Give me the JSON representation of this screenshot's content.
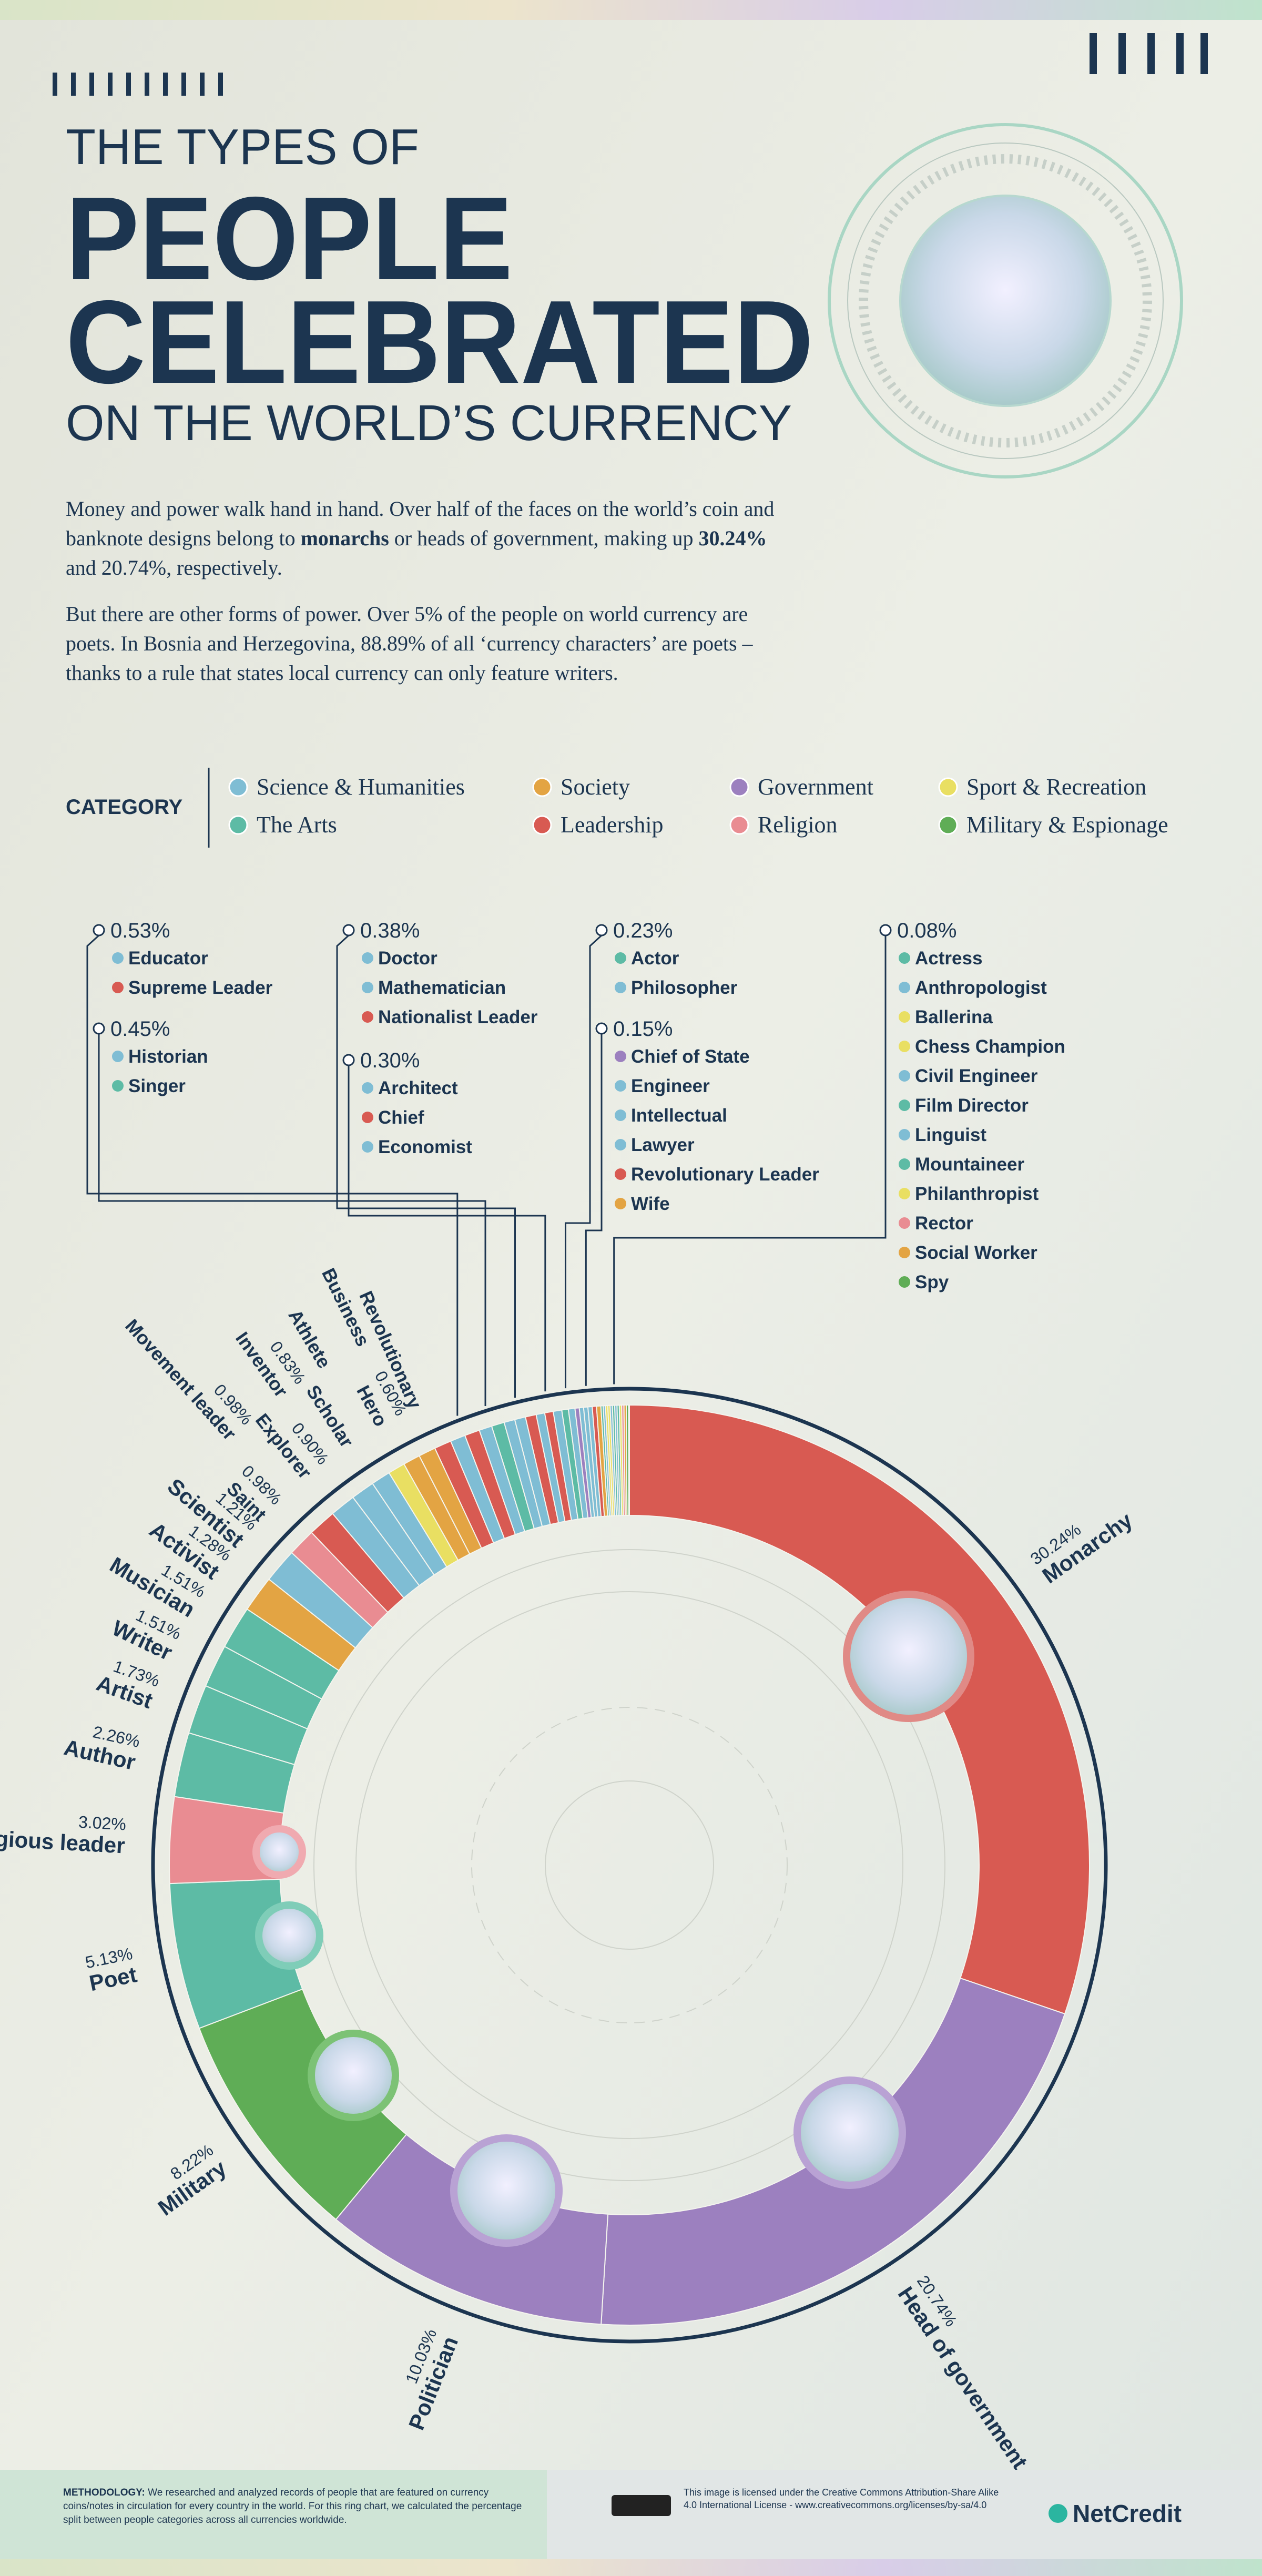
{
  "header": {
    "kicker": "THE TYPES OF",
    "title_lines": [
      "PEOPLE",
      "CELEBRATED"
    ],
    "subtitle": "ON THE WORLD’S CURRENCY"
  },
  "intro": {
    "paragraph_1": [
      "Money and power walk hand in hand. Over half of the faces on the world’s coin and banknote designs belong to ",
      "monarchs",
      " or heads of government, making up ",
      "30.24%",
      " and 20.74%, respectively."
    ],
    "paragraph_2": "But there are other forms of power. Over 5% of the people on world currency are poets. In Bosnia and Herzegovina, 88.89% of all ‘currency characters’ are poets – thanks to a rule that states local currency can only feature writers."
  },
  "legend": {
    "title": "CATEGORY",
    "items": [
      {
        "name": "Science & Humanities",
        "color": "#7fbdd4"
      },
      {
        "name": "The Arts",
        "color": "#5dbba5"
      },
      {
        "name": "Society",
        "color": "#e3a443"
      },
      {
        "name": "Leadership",
        "color": "#d85a52"
      },
      {
        "name": "Government",
        "color": "#9c80bf"
      },
      {
        "name": "Religion",
        "color": "#e98c92"
      },
      {
        "name": "Sport & Recreation",
        "color": "#e9df62"
      },
      {
        "name": "Military & Espionage",
        "color": "#5fad56"
      }
    ]
  },
  "chart_data": {
    "type": "donut",
    "categories": [
      "Monarchy",
      "Head of government",
      "Politician",
      "Military",
      "Poet",
      "Religious leader",
      "Author",
      "Artist",
      "Writer",
      "Musician",
      "Activist",
      "Scientist",
      "Saint",
      "Movement leader",
      "Explorer",
      "Inventor",
      "Scholar",
      "Athlete",
      "Hero",
      "Business",
      "Revolutionary"
    ],
    "values": [
      30.24,
      20.74,
      10.03,
      8.22,
      5.13,
      3.02,
      2.26,
      1.73,
      1.51,
      1.51,
      1.28,
      1.21,
      0.98,
      0.98,
      0.9,
      0.83,
      0.68,
      0.6,
      0.6,
      0.6,
      0.6
    ],
    "value_labels": [
      "30.24%",
      "20.74%",
      "10.03%",
      "8.22%",
      "5.13%",
      "3.02%",
      "2.26%",
      "1.73%",
      "1.51%",
      "1.51%",
      "1.28%",
      "1.21%",
      "0.98%",
      "0.98%",
      "0.90%",
      "0.83%",
      null,
      null,
      "0.60%",
      null,
      null
    ],
    "colors": [
      "#d85a52",
      "#9c80bf",
      "#9c80bf",
      "#5fad56",
      "#5dbba5",
      "#e98c92",
      "#5dbba5",
      "#5dbba5",
      "#5dbba5",
      "#5dbba5",
      "#e3a443",
      "#7fbdd4",
      "#e98c92",
      "#d85a52",
      "#7fbdd4",
      "#7fbdd4",
      "#7fbdd4",
      "#e9df62",
      "#e3a443",
      "#e3a443",
      "#d85a52"
    ],
    "groups": [
      {
        "value": 0.53,
        "value_label": "0.53%",
        "items": [
          {
            "name": "Educator",
            "color": "#7fbdd4"
          },
          {
            "name": "Supreme Leader",
            "color": "#d85a52"
          }
        ]
      },
      {
        "value": 0.45,
        "value_label": "0.45%",
        "items": [
          {
            "name": "Historian",
            "color": "#7fbdd4"
          },
          {
            "name": "Singer",
            "color": "#5dbba5"
          }
        ]
      },
      {
        "value": 0.38,
        "value_label": "0.38%",
        "items": [
          {
            "name": "Doctor",
            "color": "#7fbdd4"
          },
          {
            "name": "Mathematician",
            "color": "#7fbdd4"
          },
          {
            "name": "Nationalist Leader",
            "color": "#d85a52"
          }
        ]
      },
      {
        "value": 0.3,
        "value_label": "0.30%",
        "items": [
          {
            "name": "Architect",
            "color": "#7fbdd4"
          },
          {
            "name": "Chief",
            "color": "#d85a52"
          },
          {
            "name": "Economist",
            "color": "#7fbdd4"
          }
        ]
      },
      {
        "value": 0.23,
        "value_label": "0.23%",
        "items": [
          {
            "name": "Actor",
            "color": "#5dbba5"
          },
          {
            "name": "Philosopher",
            "color": "#7fbdd4"
          }
        ]
      },
      {
        "value": 0.15,
        "value_label": "0.15%",
        "items": [
          {
            "name": "Chief of State",
            "color": "#9c80bf"
          },
          {
            "name": "Engineer",
            "color": "#7fbdd4"
          },
          {
            "name": "Intellectual",
            "color": "#7fbdd4"
          },
          {
            "name": "Lawyer",
            "color": "#7fbdd4"
          },
          {
            "name": "Revolutionary Leader",
            "color": "#d85a52"
          },
          {
            "name": "Wife",
            "color": "#e3a443"
          }
        ]
      },
      {
        "value": 0.08,
        "value_label": "0.08%",
        "items": [
          {
            "name": "Actress",
            "color": "#5dbba5"
          },
          {
            "name": "Anthropologist",
            "color": "#7fbdd4"
          },
          {
            "name": "Ballerina",
            "color": "#e9df62"
          },
          {
            "name": "Chess Champion",
            "color": "#e9df62"
          },
          {
            "name": "Civil Engineer",
            "color": "#7fbdd4"
          },
          {
            "name": "Film Director",
            "color": "#5dbba5"
          },
          {
            "name": "Linguist",
            "color": "#7fbdd4"
          },
          {
            "name": "Mountaineer",
            "color": "#5dbba5"
          },
          {
            "name": "Philanthropist",
            "color": "#e9df62"
          },
          {
            "name": "Rector",
            "color": "#e98c92"
          },
          {
            "name": "Social Worker",
            "color": "#e3a443"
          },
          {
            "name": "Spy",
            "color": "#5fad56"
          }
        ]
      }
    ]
  },
  "footer": {
    "methodology_label": "METHODOLOGY:",
    "methodology": " We researched and analyzed records of people that are featured on currency coins/notes in circulation for every country in the world. For this ring chart, we calculated the percentage split between people categories across all currencies worldwide.",
    "license": "This image is licensed under the Creative Commons Attribution-Share Alike 4.0 International License - www.creativecommons.org/licenses/by-sa/4.0",
    "brand": "NetCredit"
  }
}
